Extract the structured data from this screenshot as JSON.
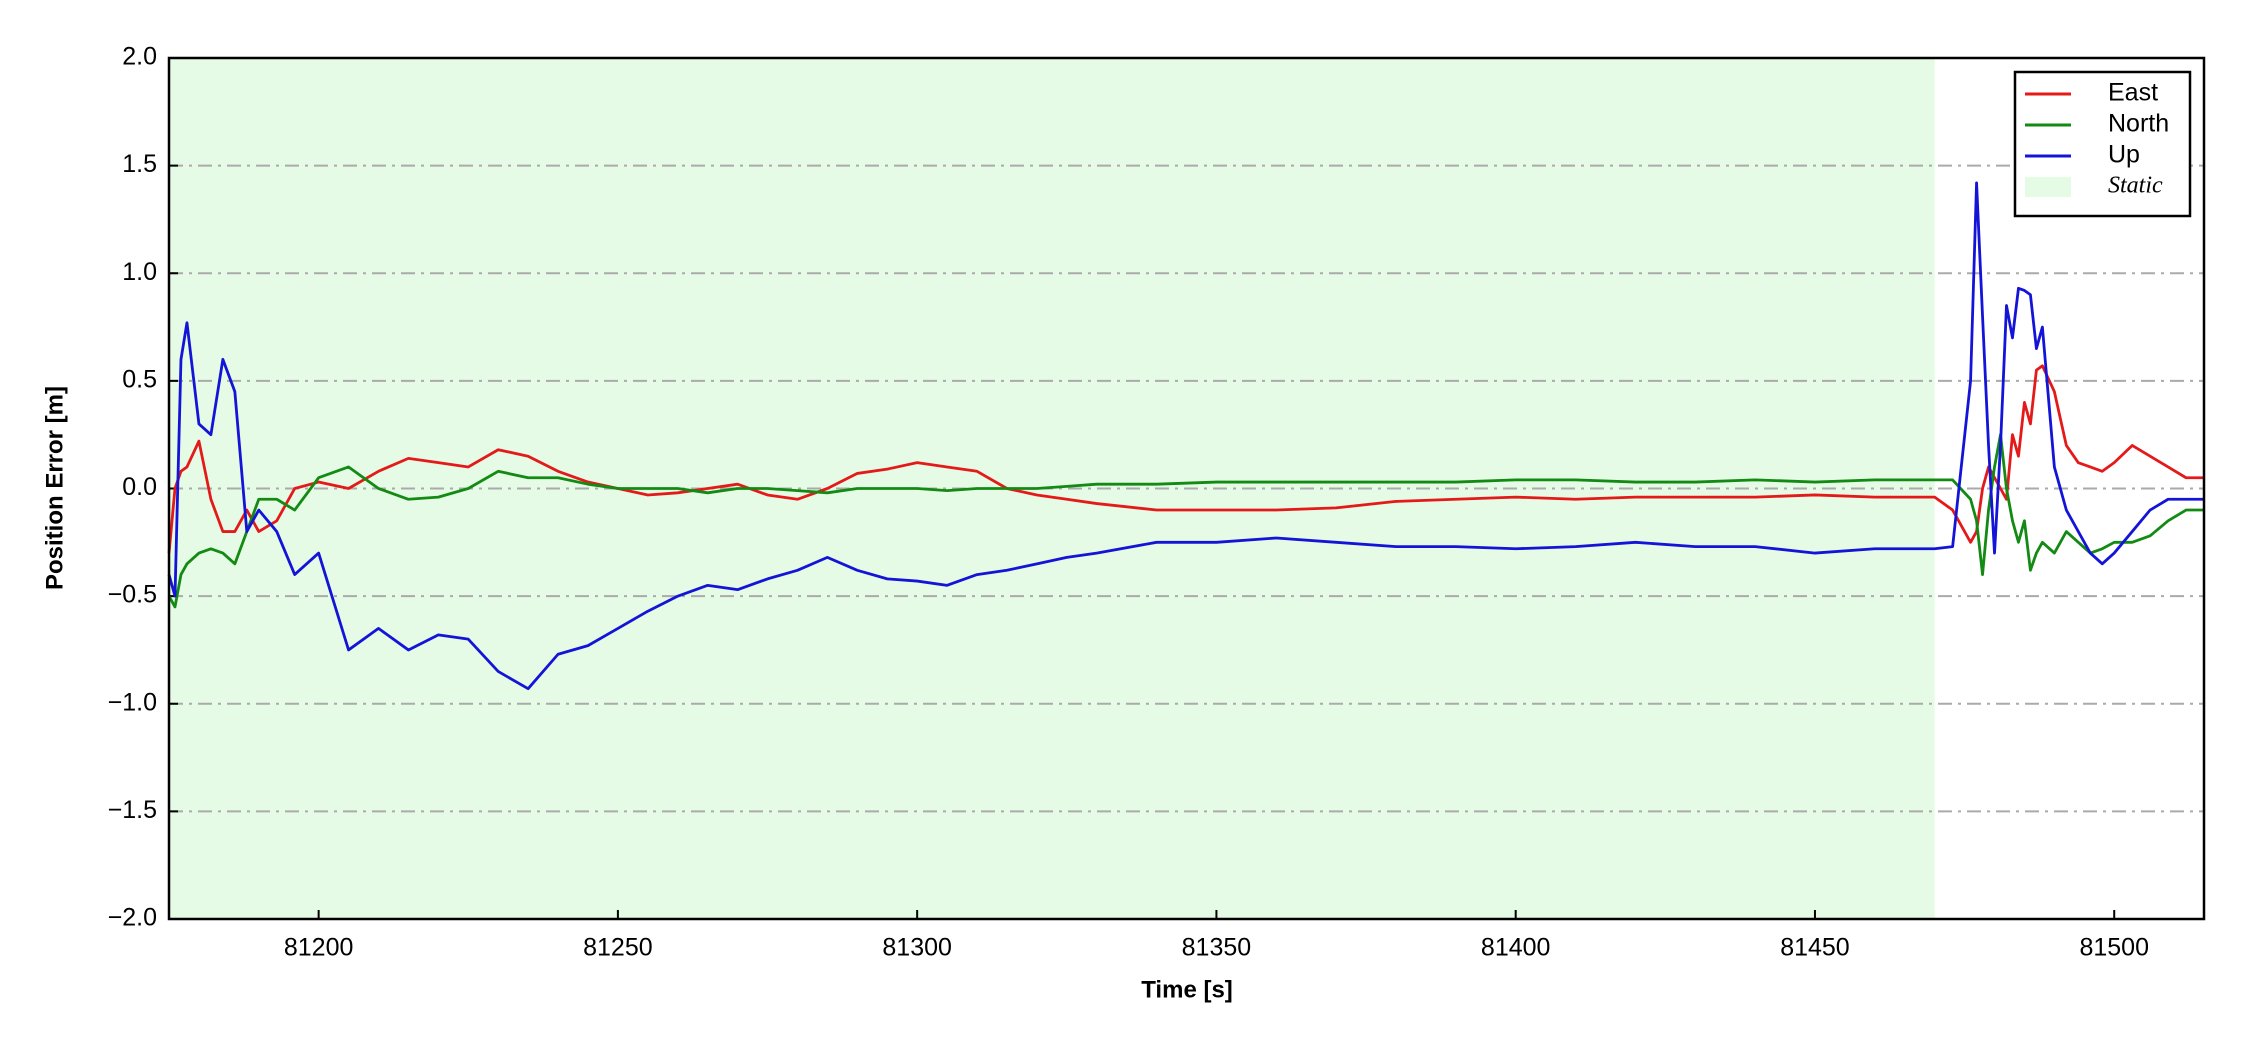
{
  "chart_data": {
    "type": "line",
    "xlabel": "Time [s]",
    "ylabel": "Position Error [m]",
    "x": [
      81175,
      81176,
      81177,
      81178,
      81180,
      81182,
      81184,
      81186,
      81188,
      81190,
      81193,
      81196,
      81200,
      81205,
      81210,
      81215,
      81220,
      81225,
      81230,
      81235,
      81240,
      81245,
      81250,
      81255,
      81260,
      81265,
      81270,
      81275,
      81280,
      81285,
      81290,
      81295,
      81300,
      81305,
      81310,
      81315,
      81320,
      81325,
      81330,
      81340,
      81350,
      81360,
      81370,
      81380,
      81390,
      81400,
      81410,
      81420,
      81430,
      81440,
      81450,
      81460,
      81470,
      81473,
      81476,
      81477,
      81478,
      81479,
      81480,
      81481,
      81482,
      81483,
      81484,
      81485,
      81486,
      81487,
      81488,
      81490,
      81492,
      81494,
      81496,
      81498,
      81500,
      81503,
      81506,
      81509,
      81512,
      81515
    ],
    "series": [
      {
        "name": "East",
        "color": "#e41a1a",
        "values": [
          -0.3,
          0.0,
          0.08,
          0.1,
          0.22,
          -0.05,
          -0.2,
          -0.2,
          -0.1,
          -0.2,
          -0.15,
          0.0,
          0.03,
          0.0,
          0.08,
          0.14,
          0.12,
          0.1,
          0.18,
          0.15,
          0.08,
          0.03,
          0.0,
          -0.03,
          -0.02,
          0.0,
          0.02,
          -0.03,
          -0.05,
          0.0,
          0.07,
          0.09,
          0.12,
          0.1,
          0.08,
          0.0,
          -0.03,
          -0.05,
          -0.07,
          -0.1,
          -0.1,
          -0.1,
          -0.09,
          -0.06,
          -0.05,
          -0.04,
          -0.05,
          -0.04,
          -0.04,
          -0.04,
          -0.03,
          -0.04,
          -0.04,
          -0.1,
          -0.25,
          -0.2,
          0.0,
          0.1,
          0.05,
          0.0,
          -0.05,
          0.25,
          0.15,
          0.4,
          0.3,
          0.55,
          0.57,
          0.45,
          0.2,
          0.12,
          0.1,
          0.08,
          0.12,
          0.2,
          0.15,
          0.1,
          0.05,
          0.05
        ]
      },
      {
        "name": "North",
        "color": "#138a13",
        "values": [
          -0.5,
          -0.55,
          -0.4,
          -0.35,
          -0.3,
          -0.28,
          -0.3,
          -0.35,
          -0.2,
          -0.05,
          -0.05,
          -0.1,
          0.05,
          0.1,
          0.0,
          -0.05,
          -0.04,
          0.0,
          0.08,
          0.05,
          0.05,
          0.02,
          0.0,
          0.0,
          0.0,
          -0.02,
          0.0,
          0.0,
          -0.01,
          -0.02,
          0.0,
          0.0,
          0.0,
          -0.01,
          0.0,
          0.0,
          0.0,
          0.01,
          0.02,
          0.02,
          0.03,
          0.03,
          0.03,
          0.03,
          0.03,
          0.04,
          0.04,
          0.03,
          0.03,
          0.04,
          0.03,
          0.04,
          0.04,
          0.04,
          -0.05,
          -0.15,
          -0.4,
          -0.1,
          0.1,
          0.25,
          0.0,
          -0.15,
          -0.25,
          -0.15,
          -0.38,
          -0.3,
          -0.25,
          -0.3,
          -0.2,
          -0.25,
          -0.3,
          -0.28,
          -0.25,
          -0.25,
          -0.22,
          -0.15,
          -0.1,
          -0.1
        ]
      },
      {
        "name": "Up",
        "color": "#1414d8",
        "values": [
          -0.4,
          -0.5,
          0.6,
          0.77,
          0.3,
          0.25,
          0.6,
          0.45,
          -0.2,
          -0.1,
          -0.2,
          -0.4,
          -0.3,
          -0.75,
          -0.65,
          -0.75,
          -0.68,
          -0.7,
          -0.85,
          -0.93,
          -0.77,
          -0.73,
          -0.65,
          -0.57,
          -0.5,
          -0.45,
          -0.47,
          -0.42,
          -0.38,
          -0.32,
          -0.38,
          -0.42,
          -0.43,
          -0.45,
          -0.4,
          -0.38,
          -0.35,
          -0.32,
          -0.3,
          -0.25,
          -0.25,
          -0.23,
          -0.25,
          -0.27,
          -0.27,
          -0.28,
          -0.27,
          -0.25,
          -0.27,
          -0.27,
          -0.3,
          -0.28,
          -0.28,
          -0.27,
          0.5,
          1.42,
          0.8,
          0.2,
          -0.3,
          0.2,
          0.85,
          0.7,
          0.93,
          0.92,
          0.9,
          0.65,
          0.75,
          0.1,
          -0.1,
          -0.2,
          -0.3,
          -0.35,
          -0.3,
          -0.2,
          -0.1,
          -0.05,
          -0.05,
          -0.05
        ]
      }
    ],
    "shaded_region": {
      "name": "Static",
      "x": [
        81175,
        81470
      ],
      "color": "#e6fbe6"
    },
    "xlim": [
      81175,
      81515
    ],
    "ylim": [
      -2.0,
      2.0
    ],
    "xticks": [
      81200,
      81250,
      81300,
      81350,
      81400,
      81450,
      81500
    ],
    "yticks": [
      {
        "value": -2.0,
        "label": "−2.0"
      },
      {
        "value": -1.5,
        "label": "−1.5"
      },
      {
        "value": -1.0,
        "label": "−1.0"
      },
      {
        "value": -0.5,
        "label": "−0.5"
      },
      {
        "value": 0.0,
        "label": "0.0"
      },
      {
        "value": 0.5,
        "label": "0.5"
      },
      {
        "value": 1.0,
        "label": "1.0"
      },
      {
        "value": 1.5,
        "label": "1.5"
      },
      {
        "value": 2.0,
        "label": "2.0"
      }
    ],
    "grid": "y",
    "legend": "upper right"
  }
}
